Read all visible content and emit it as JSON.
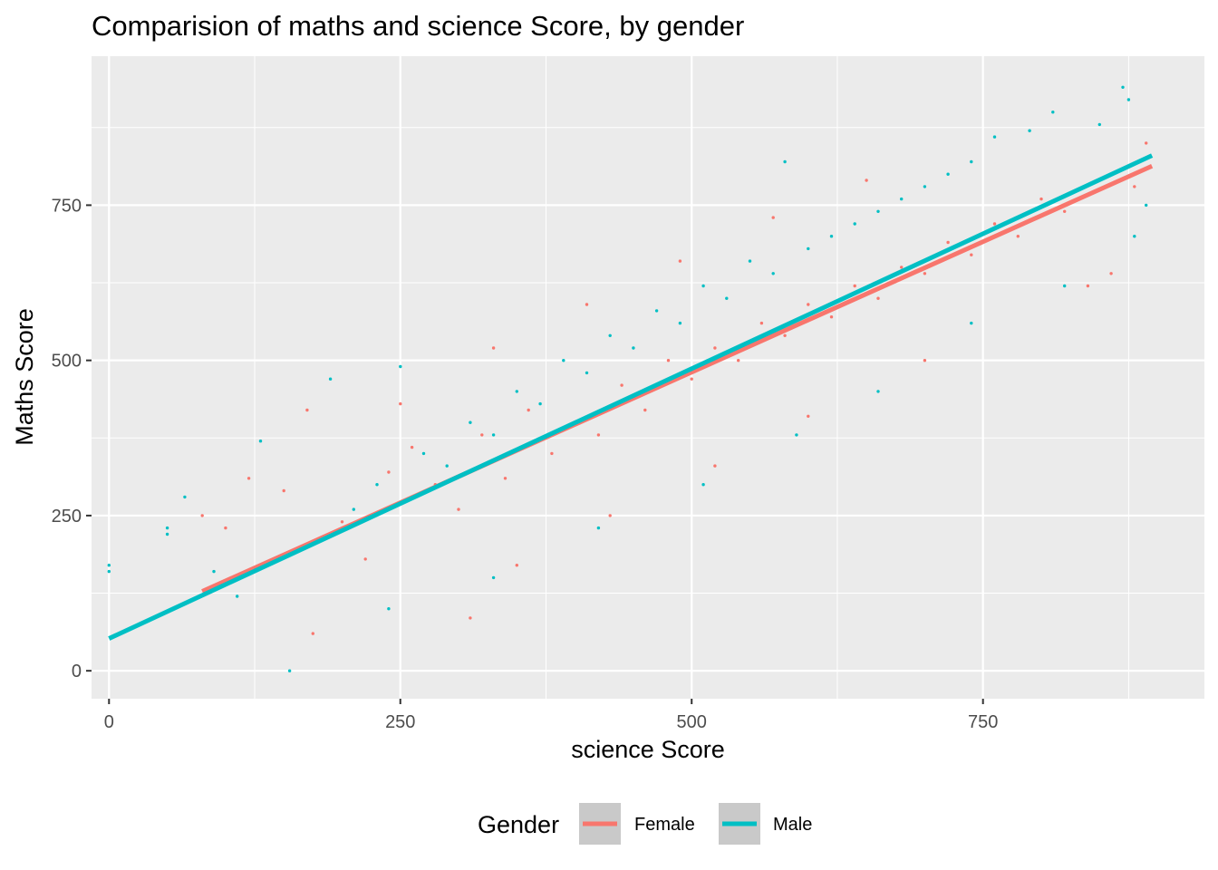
{
  "chart_data": {
    "type": "scatter",
    "title": "Comparision of maths and science Score, by gender",
    "xlabel": "science Score",
    "ylabel": "Maths Score",
    "xlim": [
      -15,
      940
    ],
    "ylim": [
      -45,
      990
    ],
    "x_ticks": [
      0,
      250,
      500,
      750
    ],
    "x_tick_labels": [
      "0",
      "250",
      "500",
      "750"
    ],
    "y_ticks": [
      0,
      250,
      500,
      750
    ],
    "y_tick_labels": [
      "0",
      "250",
      "500",
      "750"
    ],
    "grid": true,
    "legend": {
      "title": "Gender",
      "position": "bottom",
      "entries": [
        "Female",
        "Male"
      ]
    },
    "series": [
      {
        "name": "Female",
        "color": "#F8766D",
        "points": [
          [
            80,
            250
          ],
          [
            100,
            230
          ],
          [
            120,
            310
          ],
          [
            150,
            290
          ],
          [
            170,
            420
          ],
          [
            175,
            60
          ],
          [
            200,
            240
          ],
          [
            220,
            180
          ],
          [
            240,
            320
          ],
          [
            260,
            360
          ],
          [
            280,
            300
          ],
          [
            300,
            260
          ],
          [
            320,
            380
          ],
          [
            340,
            310
          ],
          [
            360,
            420
          ],
          [
            380,
            350
          ],
          [
            400,
            400
          ],
          [
            420,
            380
          ],
          [
            440,
            460
          ],
          [
            460,
            420
          ],
          [
            480,
            500
          ],
          [
            500,
            470
          ],
          [
            520,
            520
          ],
          [
            540,
            500
          ],
          [
            560,
            560
          ],
          [
            580,
            540
          ],
          [
            600,
            590
          ],
          [
            620,
            570
          ],
          [
            640,
            620
          ],
          [
            660,
            600
          ],
          [
            680,
            650
          ],
          [
            700,
            640
          ],
          [
            720,
            690
          ],
          [
            740,
            670
          ],
          [
            760,
            720
          ],
          [
            780,
            700
          ],
          [
            800,
            760
          ],
          [
            820,
            740
          ],
          [
            840,
            620
          ],
          [
            860,
            640
          ],
          [
            880,
            780
          ],
          [
            890,
            850
          ],
          [
            310,
            85
          ],
          [
            350,
            170
          ],
          [
            430,
            250
          ],
          [
            520,
            330
          ],
          [
            600,
            410
          ],
          [
            700,
            500
          ],
          [
            250,
            430
          ],
          [
            330,
            520
          ],
          [
            410,
            590
          ],
          [
            490,
            660
          ],
          [
            570,
            730
          ],
          [
            650,
            790
          ]
        ],
        "trend": {
          "x": [
            80,
            895
          ],
          "y": [
            128,
            813
          ]
        }
      },
      {
        "name": "Male",
        "color": "#00BFC4",
        "points": [
          [
            0,
            170
          ],
          [
            0,
            160
          ],
          [
            50,
            230
          ],
          [
            50,
            220
          ],
          [
            65,
            280
          ],
          [
            90,
            160
          ],
          [
            110,
            120
          ],
          [
            130,
            370
          ],
          [
            155,
            0
          ],
          [
            190,
            470
          ],
          [
            210,
            260
          ],
          [
            230,
            300
          ],
          [
            250,
            490
          ],
          [
            270,
            350
          ],
          [
            290,
            330
          ],
          [
            310,
            400
          ],
          [
            330,
            380
          ],
          [
            350,
            450
          ],
          [
            370,
            430
          ],
          [
            390,
            500
          ],
          [
            410,
            480
          ],
          [
            430,
            540
          ],
          [
            450,
            520
          ],
          [
            470,
            580
          ],
          [
            490,
            560
          ],
          [
            510,
            620
          ],
          [
            530,
            600
          ],
          [
            550,
            660
          ],
          [
            570,
            640
          ],
          [
            580,
            820
          ],
          [
            600,
            680
          ],
          [
            620,
            700
          ],
          [
            640,
            720
          ],
          [
            660,
            740
          ],
          [
            680,
            760
          ],
          [
            700,
            780
          ],
          [
            720,
            800
          ],
          [
            740,
            820
          ],
          [
            760,
            860
          ],
          [
            790,
            870
          ],
          [
            810,
            900
          ],
          [
            850,
            880
          ],
          [
            870,
            940
          ],
          [
            875,
            920
          ],
          [
            890,
            750
          ],
          [
            240,
            100
          ],
          [
            330,
            150
          ],
          [
            420,
            230
          ],
          [
            510,
            300
          ],
          [
            590,
            380
          ],
          [
            660,
            450
          ],
          [
            740,
            560
          ],
          [
            820,
            620
          ],
          [
            880,
            700
          ]
        ],
        "trend": {
          "x": [
            0,
            895
          ],
          "y": [
            52,
            830
          ]
        }
      }
    ]
  }
}
